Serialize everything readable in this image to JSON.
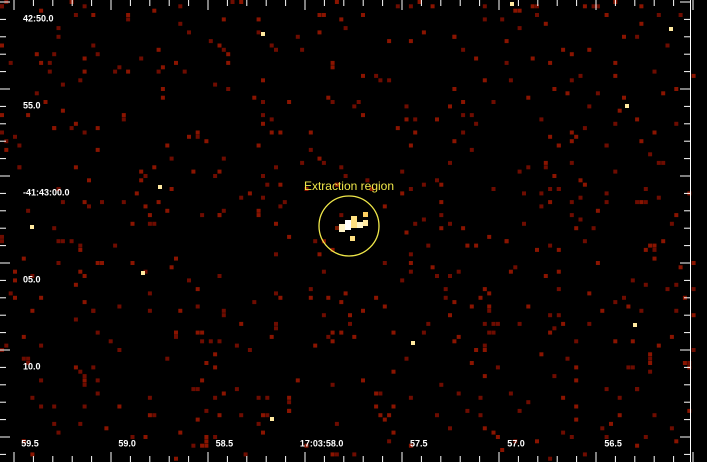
{
  "image": {
    "x_axis_labels": [
      "59.5",
      "59.0",
      "58.5",
      "17:03:58.0",
      "57.5",
      "57.0",
      "56.5"
    ],
    "y_axis_labels": [
      "42:50.0",
      "55.0",
      "-41:43:00.0",
      "05.0",
      "10.0"
    ],
    "annotation": "Extraction region"
  }
}
